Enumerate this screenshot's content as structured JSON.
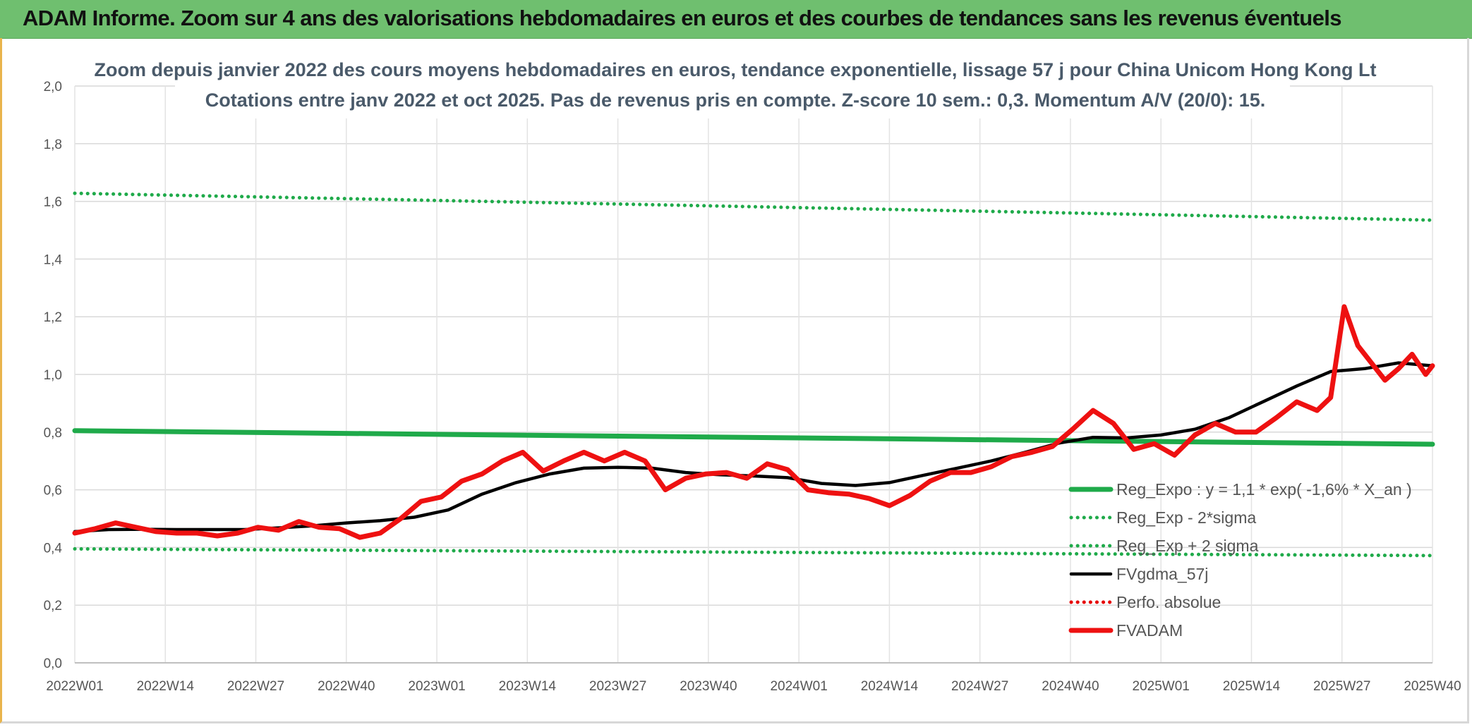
{
  "header": {
    "title": "ADAM Informe. Zoom sur 4 ans des valorisations hebdomadaires en euros et des courbes de tendances sans les revenus éventuels"
  },
  "chart_data": {
    "type": "line",
    "title": "Zoom depuis janvier 2022 des cours moyens hebdomadaires en euros, tendance exponentielle, lissage 57 j pour China Unicom Hong Kong Lt",
    "subtitle": "Cotations entre janv 2022 et oct 2025. Pas de revenus pris en compte. Z-score 10 sem.: 0,3. Momentum A/V (20/0): 15.",
    "xlabel": "",
    "ylabel": "",
    "ylim": [
      0,
      2.0
    ],
    "y_ticks": [
      "0,0",
      "0,2",
      "0,4",
      "0,6",
      "0,8",
      "1,0",
      "1,2",
      "1,4",
      "1,6",
      "1,8",
      "2,0"
    ],
    "x_ticks": [
      "2022W01",
      "2022W14",
      "2022W27",
      "2022W40",
      "2023W01",
      "2023W14",
      "2023W27",
      "2023W40",
      "2024W01",
      "2024W14",
      "2024W27",
      "2024W40",
      "2025W01",
      "2025W14",
      "2025W27",
      "2025W40"
    ],
    "grid": true,
    "legend_position": "bottom-right",
    "series": [
      {
        "name": "Reg_Expo : y = 1,1 * exp( -1,6% *  X_an )",
        "color": "#1faa4a",
        "style": "solid",
        "x": [
          0,
          200
        ],
        "values": [
          0.805,
          0.758
        ]
      },
      {
        "name": "Reg_Exp - 2*sigma",
        "color": "#1faa4a",
        "style": "dotted",
        "x": [
          0,
          200
        ],
        "values": [
          0.395,
          0.372
        ]
      },
      {
        "name": "Reg_Exp + 2 sigma",
        "color": "#1faa4a",
        "style": "dotted",
        "x": [
          0,
          200
        ],
        "values": [
          1.628,
          1.535
        ]
      },
      {
        "name": "FVgdma_57j",
        "color": "#000000",
        "style": "solid",
        "x": [
          0,
          5,
          10,
          15,
          20,
          25,
          30,
          35,
          40,
          45,
          50,
          55,
          60,
          65,
          70,
          75,
          80,
          85,
          90,
          95,
          100,
          105,
          110,
          115,
          120,
          125,
          130,
          135,
          140,
          145,
          150,
          155,
          160,
          165,
          170,
          175,
          180,
          185,
          190,
          195,
          200
        ],
        "values": [
          0.455,
          0.462,
          0.463,
          0.462,
          0.462,
          0.462,
          0.468,
          0.475,
          0.485,
          0.493,
          0.505,
          0.53,
          0.585,
          0.625,
          0.655,
          0.675,
          0.678,
          0.675,
          0.66,
          0.652,
          0.648,
          0.642,
          0.622,
          0.615,
          0.625,
          0.65,
          0.675,
          0.7,
          0.73,
          0.762,
          0.782,
          0.78,
          0.79,
          0.81,
          0.85,
          0.905,
          0.96,
          1.01,
          1.02,
          1.04,
          1.03
        ]
      },
      {
        "name": "Perfo. absolue",
        "color": "#e60000",
        "style": "dotted",
        "x": [],
        "values": []
      },
      {
        "name": "FVADAM",
        "color": "#ee1111",
        "style": "solid",
        "x": [
          0,
          3,
          6,
          9,
          12,
          15,
          18,
          21,
          24,
          27,
          30,
          33,
          36,
          39,
          42,
          45,
          48,
          51,
          54,
          57,
          60,
          63,
          66,
          69,
          72,
          75,
          78,
          81,
          84,
          87,
          90,
          93,
          96,
          99,
          102,
          105,
          108,
          111,
          114,
          117,
          120,
          123,
          126,
          129,
          132,
          135,
          138,
          141,
          144,
          147,
          150,
          153,
          156,
          159,
          162,
          165,
          168,
          171,
          174,
          177,
          180,
          183,
          185,
          187,
          189,
          191,
          193,
          195,
          197,
          199,
          200
        ],
        "values": [
          0.45,
          0.465,
          0.485,
          0.47,
          0.455,
          0.45,
          0.45,
          0.44,
          0.45,
          0.47,
          0.46,
          0.49,
          0.47,
          0.465,
          0.435,
          0.45,
          0.5,
          0.56,
          0.575,
          0.63,
          0.655,
          0.7,
          0.73,
          0.665,
          0.7,
          0.73,
          0.7,
          0.73,
          0.7,
          0.6,
          0.64,
          0.655,
          0.66,
          0.64,
          0.69,
          0.67,
          0.6,
          0.59,
          0.585,
          0.57,
          0.545,
          0.58,
          0.63,
          0.66,
          0.66,
          0.68,
          0.715,
          0.73,
          0.75,
          0.81,
          0.875,
          0.83,
          0.74,
          0.76,
          0.72,
          0.79,
          0.83,
          0.8,
          0.8,
          0.85,
          0.905,
          0.875,
          0.92,
          1.235,
          1.1,
          1.04,
          0.98,
          1.02,
          1.07,
          1.0,
          1.03
        ]
      }
    ]
  }
}
